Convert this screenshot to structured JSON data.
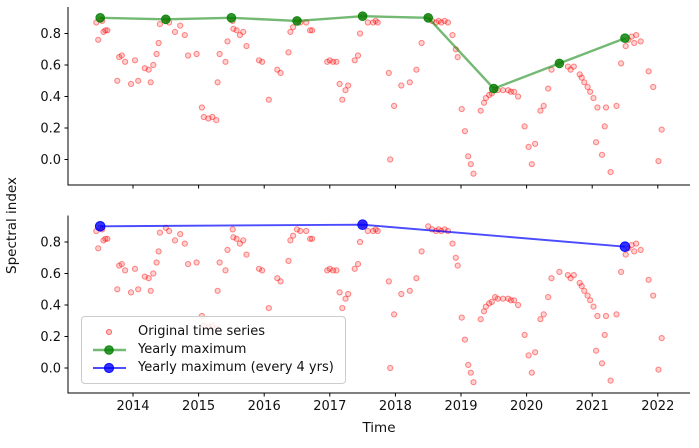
{
  "labels": {
    "y_axis": "Spectral index",
    "x_axis": "Time"
  },
  "legend": {
    "items": [
      {
        "label": "Original time series",
        "swatch": "red-dot"
      },
      {
        "label": "Yearly maximum",
        "swatch": "green-line-marker"
      },
      {
        "label": "Yearly maximum (every 4 yrs)",
        "swatch": "blue-line-marker"
      }
    ]
  },
  "colors": {
    "scatter": "#ff0000",
    "yearly_max": "#008000",
    "yearly_max_4yr": "#0000ff",
    "axis": "#000000",
    "tick_text": "#111111",
    "legend_border": "#cccccc"
  },
  "chart_data": {
    "type": "scatter",
    "layout": {
      "subplot_count": 2,
      "shared_x": true,
      "grid": false,
      "legend_position": "lower left of bottom subplot"
    },
    "x_axis": {
      "label": "Time",
      "ticks": [
        2014,
        2015,
        2016,
        2017,
        2018,
        2019,
        2020,
        2021,
        2022
      ],
      "ticklabels": [
        "2014",
        "2015",
        "2016",
        "2017",
        "2018",
        "2019",
        "2020",
        "2021",
        "2022"
      ],
      "range": [
        2013.0,
        2022.5
      ]
    },
    "y_axis": {
      "label": "Spectral index",
      "ticks": [
        0.8,
        0.6,
        0.4,
        0.2,
        0.0
      ],
      "ticklabels": [
        "0.8",
        "0.6",
        "0.4",
        "0.2",
        "0.0"
      ],
      "range": [
        -0.16,
        0.97
      ]
    },
    "original_time_series": {
      "name": "Original time series",
      "color": "#ff0000",
      "alpha": 0.3,
      "points": [
        [
          2013.44,
          0.87
        ],
        [
          2013.47,
          0.76
        ],
        [
          2013.5,
          0.89
        ],
        [
          2013.53,
          0.88
        ],
        [
          2013.55,
          0.81
        ],
        [
          2013.58,
          0.82
        ],
        [
          2013.61,
          0.82
        ],
        [
          2013.76,
          0.5
        ],
        [
          2013.79,
          0.65
        ],
        [
          2013.83,
          0.66
        ],
        [
          2013.88,
          0.62
        ],
        [
          2013.97,
          0.48
        ],
        [
          2014.03,
          0.63
        ],
        [
          2014.08,
          0.5
        ],
        [
          2014.18,
          0.58
        ],
        [
          2014.24,
          0.57
        ],
        [
          2014.27,
          0.49
        ],
        [
          2014.31,
          0.6
        ],
        [
          2014.36,
          0.67
        ],
        [
          2014.39,
          0.74
        ],
        [
          2014.41,
          0.86
        ],
        [
          2014.5,
          0.89
        ],
        [
          2014.55,
          0.87
        ],
        [
          2014.64,
          0.81
        ],
        [
          2014.72,
          0.85
        ],
        [
          2014.79,
          0.79
        ],
        [
          2014.84,
          0.66
        ],
        [
          2014.97,
          0.67
        ],
        [
          2015.05,
          0.33
        ],
        [
          2015.08,
          0.27
        ],
        [
          2015.15,
          0.26
        ],
        [
          2015.21,
          0.27
        ],
        [
          2015.27,
          0.25
        ],
        [
          2015.29,
          0.49
        ],
        [
          2015.32,
          0.67
        ],
        [
          2015.41,
          0.62
        ],
        [
          2015.44,
          0.75
        ],
        [
          2015.52,
          0.88
        ],
        [
          2015.53,
          0.83
        ],
        [
          2015.58,
          0.82
        ],
        [
          2015.63,
          0.79
        ],
        [
          2015.68,
          0.81
        ],
        [
          2015.73,
          0.72
        ],
        [
          2015.92,
          0.63
        ],
        [
          2015.97,
          0.62
        ],
        [
          2016.07,
          0.38
        ],
        [
          2016.2,
          0.57
        ],
        [
          2016.25,
          0.55
        ],
        [
          2016.37,
          0.68
        ],
        [
          2016.4,
          0.81
        ],
        [
          2016.44,
          0.84
        ],
        [
          2016.5,
          0.88
        ],
        [
          2016.55,
          0.87
        ],
        [
          2016.64,
          0.87
        ],
        [
          2016.7,
          0.82
        ],
        [
          2016.73,
          0.82
        ],
        [
          2016.96,
          0.62
        ],
        [
          2017.0,
          0.63
        ],
        [
          2017.05,
          0.62
        ],
        [
          2017.1,
          0.62
        ],
        [
          2017.15,
          0.48
        ],
        [
          2017.19,
          0.38
        ],
        [
          2017.24,
          0.44
        ],
        [
          2017.28,
          0.47
        ],
        [
          2017.38,
          0.63
        ],
        [
          2017.43,
          0.66
        ],
        [
          2017.46,
          0.8
        ],
        [
          2017.5,
          0.91
        ],
        [
          2017.58,
          0.87
        ],
        [
          2017.66,
          0.87
        ],
        [
          2017.7,
          0.88
        ],
        [
          2017.73,
          0.87
        ],
        [
          2017.9,
          0.55
        ],
        [
          2017.92,
          0.0
        ],
        [
          2017.98,
          0.34
        ],
        [
          2018.09,
          0.47
        ],
        [
          2018.22,
          0.49
        ],
        [
          2018.32,
          0.57
        ],
        [
          2018.4,
          0.74
        ],
        [
          2018.5,
          0.9
        ],
        [
          2018.56,
          0.88
        ],
        [
          2018.62,
          0.87
        ],
        [
          2018.66,
          0.88
        ],
        [
          2018.7,
          0.87
        ],
        [
          2018.75,
          0.88
        ],
        [
          2018.8,
          0.87
        ],
        [
          2018.87,
          0.79
        ],
        [
          2018.92,
          0.7
        ],
        [
          2018.95,
          0.65
        ],
        [
          2019.01,
          0.32
        ],
        [
          2019.06,
          0.18
        ],
        [
          2019.11,
          0.02
        ],
        [
          2019.15,
          -0.03
        ],
        [
          2019.19,
          -0.09
        ],
        [
          2019.3,
          0.31
        ],
        [
          2019.35,
          0.36
        ],
        [
          2019.38,
          0.39
        ],
        [
          2019.43,
          0.41
        ],
        [
          2019.47,
          0.42
        ],
        [
          2019.52,
          0.45
        ],
        [
          2019.56,
          0.44
        ],
        [
          2019.64,
          0.44
        ],
        [
          2019.72,
          0.44
        ],
        [
          2019.76,
          0.43
        ],
        [
          2019.81,
          0.43
        ],
        [
          2019.87,
          0.4
        ],
        [
          2019.97,
          0.21
        ],
        [
          2020.03,
          0.08
        ],
        [
          2020.08,
          -0.03
        ],
        [
          2020.13,
          0.1
        ],
        [
          2020.21,
          0.31
        ],
        [
          2020.26,
          0.34
        ],
        [
          2020.33,
          0.45
        ],
        [
          2020.38,
          0.57
        ],
        [
          2020.5,
          0.61
        ],
        [
          2020.63,
          0.59
        ],
        [
          2020.67,
          0.57
        ],
        [
          2020.72,
          0.59
        ],
        [
          2020.81,
          0.54
        ],
        [
          2020.84,
          0.52
        ],
        [
          2020.88,
          0.49
        ],
        [
          2020.93,
          0.46
        ],
        [
          2020.97,
          0.43
        ],
        [
          2021.02,
          0.39
        ],
        [
          2021.06,
          0.11
        ],
        [
          2021.08,
          0.33
        ],
        [
          2021.15,
          0.03
        ],
        [
          2021.19,
          0.21
        ],
        [
          2021.21,
          0.33
        ],
        [
          2021.28,
          -0.08
        ],
        [
          2021.37,
          0.34
        ],
        [
          2021.44,
          0.61
        ],
        [
          2021.51,
          0.72
        ],
        [
          2021.55,
          0.76
        ],
        [
          2021.6,
          0.78
        ],
        [
          2021.64,
          0.74
        ],
        [
          2021.67,
          0.79
        ],
        [
          2021.74,
          0.75
        ],
        [
          2021.86,
          0.56
        ],
        [
          2021.93,
          0.46
        ],
        [
          2022.01,
          -0.01
        ],
        [
          2022.06,
          0.19
        ]
      ]
    },
    "subplots": [
      {
        "name": "top",
        "overlay_series": {
          "name": "Yearly maximum",
          "color": "#008000",
          "line_alpha": 0.55,
          "x": [
            2013.5,
            2014.5,
            2015.5,
            2016.5,
            2017.5,
            2018.5,
            2019.5,
            2020.5,
            2021.5
          ],
          "y": [
            0.9,
            0.89,
            0.9,
            0.88,
            0.91,
            0.9,
            0.45,
            0.61,
            0.77
          ]
        }
      },
      {
        "name": "bottom",
        "overlay_series": {
          "name": "Yearly maximum (every 4 yrs)",
          "color": "#0000ff",
          "line_alpha": 0.7,
          "x": [
            2013.5,
            2017.5,
            2021.5
          ],
          "y": [
            0.9,
            0.91,
            0.77
          ]
        }
      }
    ]
  }
}
